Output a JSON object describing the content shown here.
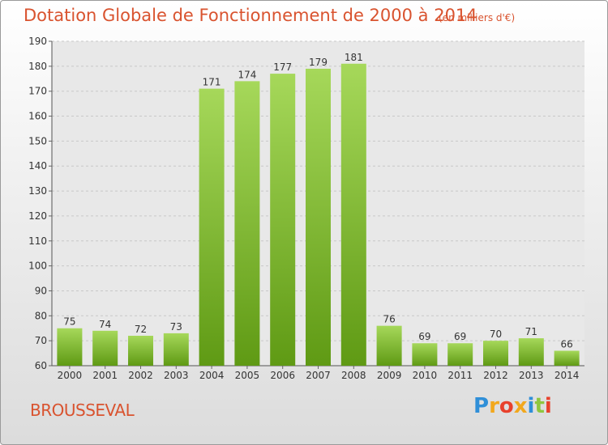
{
  "header": {
    "title": "Dotation Globale de Fonctionnement de 2000 à 2014",
    "units": "(en milliers d'€)"
  },
  "footer": {
    "place": "BROUSSEVAL",
    "logo_letters": [
      "P",
      "r",
      "o",
      "x",
      "i",
      "t",
      "i"
    ],
    "logo_colors": [
      "#2f8fd8",
      "#f2a81d",
      "#e8412c",
      "#f2a81d",
      "#2f8fd8",
      "#8fc63f",
      "#e8412c"
    ]
  },
  "chart_data": {
    "type": "bar",
    "title": "Dotation Globale de Fonctionnement de 2000 à 2014",
    "subtitle": "(en milliers d'€)",
    "xlabel": "",
    "ylabel": "",
    "categories": [
      "2000",
      "2001",
      "2002",
      "2003",
      "2004",
      "2005",
      "2006",
      "2007",
      "2008",
      "2009",
      "2010",
      "2011",
      "2012",
      "2013",
      "2014"
    ],
    "values": [
      75,
      74,
      72,
      73,
      171,
      174,
      177,
      179,
      181,
      76,
      69,
      69,
      70,
      71,
      66
    ],
    "ylim": [
      60,
      190
    ],
    "yticks": [
      60,
      70,
      80,
      90,
      100,
      110,
      120,
      130,
      140,
      150,
      160,
      170,
      180,
      190
    ],
    "grid": "horizontal-dashed",
    "colors": {
      "bar_top": "#a6d85a",
      "bar_bottom": "#5f9a14",
      "plot_bg": "#e8e8e8",
      "grid": "#c8c8c8",
      "text": "#333333"
    }
  }
}
